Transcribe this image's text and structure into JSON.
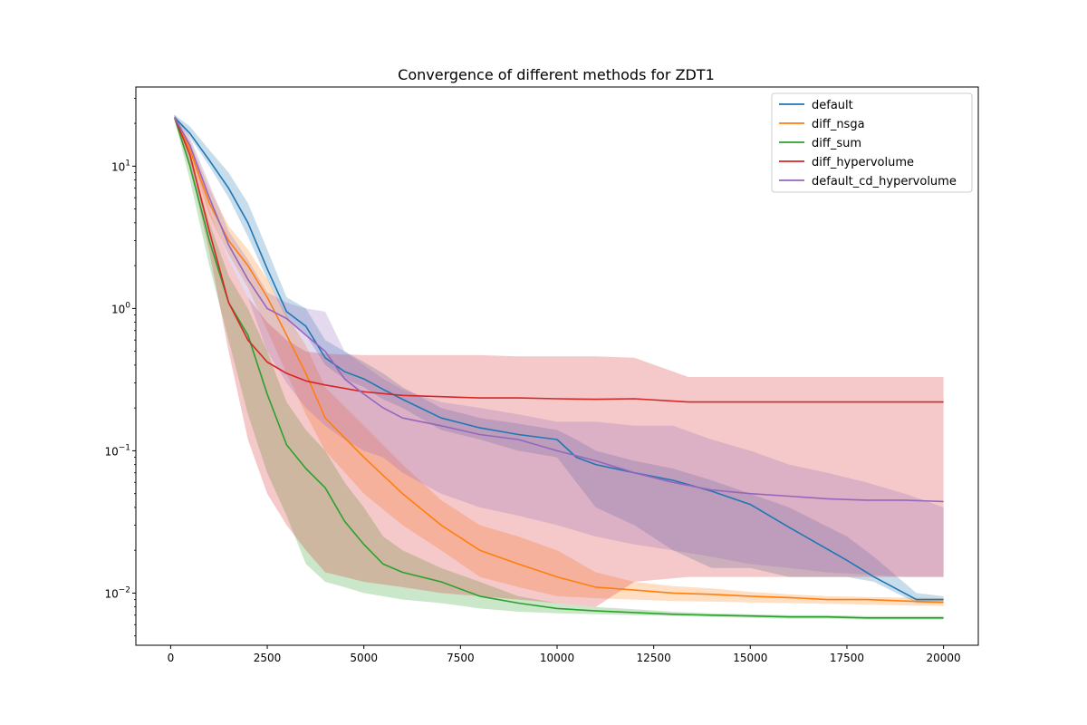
{
  "chart_data": {
    "type": "line",
    "title": "Convergence of different methods for ZDT1",
    "xlabel": "",
    "ylabel": "",
    "xlim": [
      -900,
      20900
    ],
    "ylim": [
      0.0043,
      36
    ],
    "yscale": "log",
    "x_ticks": [
      0,
      2500,
      5000,
      7500,
      10000,
      12500,
      15000,
      17500,
      20000
    ],
    "x_tick_labels": [
      "0",
      "2500",
      "5000",
      "7500",
      "10000",
      "12500",
      "15000",
      "17500",
      "20000"
    ],
    "y_ticks": [
      0.01,
      0.1,
      1,
      10
    ],
    "y_tick_labels": [
      "10",
      "10",
      "10",
      "10"
    ],
    "y_tick_exponents": [
      "−2",
      "−1",
      "0",
      "1"
    ],
    "grid": false,
    "legend_position": "upper right",
    "series": [
      {
        "name": "default",
        "color": "#1f77b4",
        "x": [
          100,
          500,
          1000,
          1500,
          2000,
          2500,
          3000,
          3500,
          4000,
          4500,
          5000,
          5500,
          6000,
          7000,
          8000,
          9000,
          10000,
          10500,
          11000,
          12000,
          13000,
          14000,
          15000,
          16000,
          17500,
          18200,
          19300,
          20000
        ],
        "y": [
          22,
          17,
          11,
          7,
          4,
          1.9,
          0.95,
          0.75,
          0.45,
          0.36,
          0.32,
          0.27,
          0.23,
          0.17,
          0.145,
          0.13,
          0.12,
          0.09,
          0.08,
          0.07,
          0.062,
          0.052,
          0.042,
          0.029,
          0.017,
          0.013,
          0.009,
          0.009
        ],
        "lower": [
          21,
          16,
          10,
          6,
          3.2,
          1.6,
          0.85,
          0.65,
          0.4,
          0.32,
          0.28,
          0.23,
          0.2,
          0.14,
          0.12,
          0.1,
          0.09,
          0.06,
          0.04,
          0.03,
          0.02,
          0.015,
          0.015,
          0.013,
          0.013,
          0.012,
          0.0085,
          0.0085
        ],
        "upper": [
          23,
          19,
          13,
          9,
          5.5,
          2.6,
          1.2,
          1.0,
          0.6,
          0.5,
          0.42,
          0.35,
          0.28,
          0.2,
          0.17,
          0.155,
          0.14,
          0.12,
          0.1,
          0.085,
          0.075,
          0.062,
          0.05,
          0.04,
          0.025,
          0.018,
          0.01,
          0.0095
        ]
      },
      {
        "name": "diff_nsga",
        "color": "#ff7f0e",
        "x": [
          100,
          500,
          1000,
          1500,
          2000,
          2500,
          3000,
          3500,
          4000,
          5000,
          6000,
          7000,
          8000,
          9000,
          10000,
          11000,
          12000,
          13000,
          14000,
          15000,
          16000,
          17000,
          18000,
          19000,
          20000
        ],
        "y": [
          22,
          13,
          5.5,
          3,
          2,
          1.2,
          0.65,
          0.35,
          0.17,
          0.09,
          0.05,
          0.03,
          0.02,
          0.016,
          0.013,
          0.011,
          0.0105,
          0.01,
          0.0098,
          0.0095,
          0.0093,
          0.009,
          0.009,
          0.0088,
          0.0086
        ],
        "lower": [
          21,
          12,
          4.5,
          2.4,
          1.4,
          0.7,
          0.35,
          0.18,
          0.1,
          0.05,
          0.03,
          0.02,
          0.013,
          0.011,
          0.0095,
          0.0092,
          0.009,
          0.0088,
          0.0087,
          0.0086,
          0.0085,
          0.0084,
          0.0083,
          0.0082,
          0.0081
        ],
        "upper": [
          23,
          15,
          7,
          3.8,
          2.6,
          1.6,
          0.9,
          0.55,
          0.28,
          0.15,
          0.08,
          0.045,
          0.03,
          0.025,
          0.02,
          0.014,
          0.012,
          0.0112,
          0.0108,
          0.0102,
          0.0098,
          0.0095,
          0.0094,
          0.0093,
          0.0092
        ]
      },
      {
        "name": "diff_sum",
        "color": "#2ca02c",
        "x": [
          100,
          500,
          1000,
          1500,
          2000,
          2500,
          3000,
          3500,
          4000,
          4500,
          5000,
          5500,
          6000,
          7000,
          8000,
          9000,
          10000,
          11000,
          12000,
          13000,
          14000,
          15000,
          16000,
          17000,
          18000,
          19000,
          20000
        ],
        "y": [
          22,
          10,
          3,
          1.1,
          0.65,
          0.25,
          0.11,
          0.075,
          0.055,
          0.032,
          0.022,
          0.016,
          0.014,
          0.012,
          0.0095,
          0.0085,
          0.0078,
          0.0075,
          0.0073,
          0.0071,
          0.007,
          0.0069,
          0.0068,
          0.0068,
          0.0067,
          0.0067,
          0.0067
        ],
        "lower": [
          21,
          8,
          2,
          0.6,
          0.18,
          0.07,
          0.035,
          0.016,
          0.012,
          0.011,
          0.01,
          0.0095,
          0.009,
          0.0085,
          0.0078,
          0.0074,
          0.0072,
          0.0071,
          0.007,
          0.0069,
          0.0068,
          0.0067,
          0.0066,
          0.0066,
          0.0065,
          0.0065,
          0.0065
        ],
        "upper": [
          23,
          12,
          4,
          1.7,
          1.0,
          0.5,
          0.22,
          0.14,
          0.1,
          0.06,
          0.04,
          0.025,
          0.02,
          0.015,
          0.012,
          0.0095,
          0.0085,
          0.008,
          0.0077,
          0.0074,
          0.0072,
          0.0071,
          0.007,
          0.007,
          0.0069,
          0.0069,
          0.0069
        ]
      },
      {
        "name": "diff_hypervolume",
        "color": "#d62728",
        "x": [
          100,
          500,
          1000,
          1500,
          2000,
          2500,
          3000,
          3500,
          4000,
          5000,
          6000,
          7000,
          8000,
          9000,
          10000,
          11000,
          12000,
          13400,
          14000,
          16000,
          18000,
          20000
        ],
        "y": [
          22,
          12,
          3.5,
          1.1,
          0.6,
          0.42,
          0.35,
          0.31,
          0.29,
          0.26,
          0.245,
          0.24,
          0.235,
          0.235,
          0.232,
          0.23,
          0.232,
          0.22,
          0.22,
          0.22,
          0.22,
          0.22
        ],
        "lower": [
          21,
          10,
          2.5,
          0.5,
          0.12,
          0.05,
          0.03,
          0.02,
          0.014,
          0.012,
          0.011,
          0.01,
          0.0095,
          0.009,
          0.0085,
          0.008,
          0.012,
          0.013,
          0.013,
          0.013,
          0.013,
          0.013
        ],
        "upper": [
          23,
          14,
          5,
          2.2,
          1.2,
          0.8,
          0.6,
          0.5,
          0.48,
          0.47,
          0.47,
          0.47,
          0.47,
          0.46,
          0.46,
          0.46,
          0.45,
          0.33,
          0.33,
          0.33,
          0.33,
          0.33
        ]
      },
      {
        "name": "default_cd_hypervolume",
        "color": "#9467bd",
        "x": [
          100,
          500,
          1000,
          1500,
          2000,
          2500,
          3000,
          3500,
          4000,
          4500,
          5000,
          5500,
          6000,
          7000,
          8000,
          9000,
          10000,
          11000,
          12000,
          13000,
          14000,
          15000,
          16000,
          17000,
          18000,
          19000,
          20000
        ],
        "y": [
          22,
          14,
          6,
          2.8,
          1.6,
          1.0,
          0.85,
          0.65,
          0.5,
          0.32,
          0.25,
          0.2,
          0.17,
          0.15,
          0.13,
          0.12,
          0.1,
          0.085,
          0.07,
          0.06,
          0.053,
          0.05,
          0.048,
          0.046,
          0.045,
          0.045,
          0.044
        ],
        "lower": [
          21,
          13,
          5,
          2.2,
          1.2,
          0.5,
          0.3,
          0.2,
          0.15,
          0.12,
          0.1,
          0.09,
          0.07,
          0.05,
          0.04,
          0.035,
          0.03,
          0.025,
          0.022,
          0.02,
          0.018,
          0.016,
          0.015,
          0.014,
          0.0135,
          0.013,
          0.013
        ],
        "upper": [
          23,
          16,
          7.5,
          3.5,
          2.2,
          1.3,
          1.1,
          1.0,
          0.95,
          0.5,
          0.4,
          0.32,
          0.27,
          0.22,
          0.2,
          0.18,
          0.16,
          0.16,
          0.15,
          0.15,
          0.12,
          0.1,
          0.08,
          0.07,
          0.06,
          0.05,
          0.04
        ]
      }
    ]
  }
}
